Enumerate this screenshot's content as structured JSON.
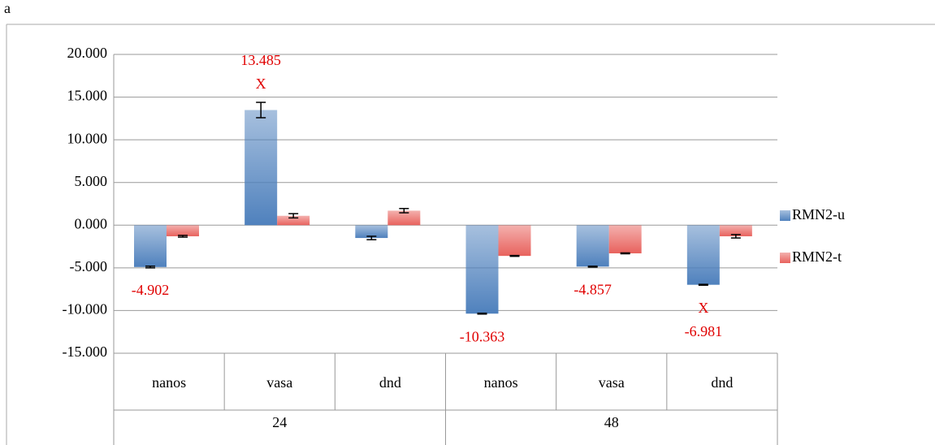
{
  "panel_label": "a",
  "chart_data": {
    "type": "bar",
    "categories": [
      "nanos",
      "vasa",
      "dnd",
      "nanos",
      "vasa",
      "dnd"
    ],
    "groups": [
      "24",
      "48"
    ],
    "series": [
      {
        "name": "RMN2-u",
        "color": "#4f81bd",
        "values": [
          -4.902,
          13.485,
          -1.5,
          -10.363,
          -4.857,
          -6.981
        ],
        "errors": [
          0.1,
          0.9,
          0.2,
          0.05,
          0.05,
          0.05
        ],
        "value_labels": [
          "-4.902",
          "13.485",
          null,
          "-10.363",
          "-4.857",
          "-6.981"
        ],
        "markers": [
          null,
          "X",
          null,
          null,
          null,
          "X"
        ]
      },
      {
        "name": "RMN2-t",
        "color": "#e8625d",
        "values": [
          -1.3,
          1.1,
          1.7,
          -3.6,
          -3.3,
          -1.3
        ],
        "errors": [
          0.1,
          0.25,
          0.25,
          0.05,
          0.05,
          0.2
        ]
      }
    ],
    "ylim": [
      -15,
      20
    ],
    "yticks": [
      {
        "value": -15,
        "label": "-15.000"
      },
      {
        "value": -10,
        "label": "-10.000"
      },
      {
        "value": -5,
        "label": "-5.000"
      },
      {
        "value": 0,
        "label": "0.000"
      },
      {
        "value": 5,
        "label": "5.000"
      },
      {
        "value": 10,
        "label": "10.000"
      },
      {
        "value": 15,
        "label": "15.000"
      },
      {
        "value": 20,
        "label": "20.000"
      }
    ],
    "grid": true,
    "legend": "right"
  }
}
